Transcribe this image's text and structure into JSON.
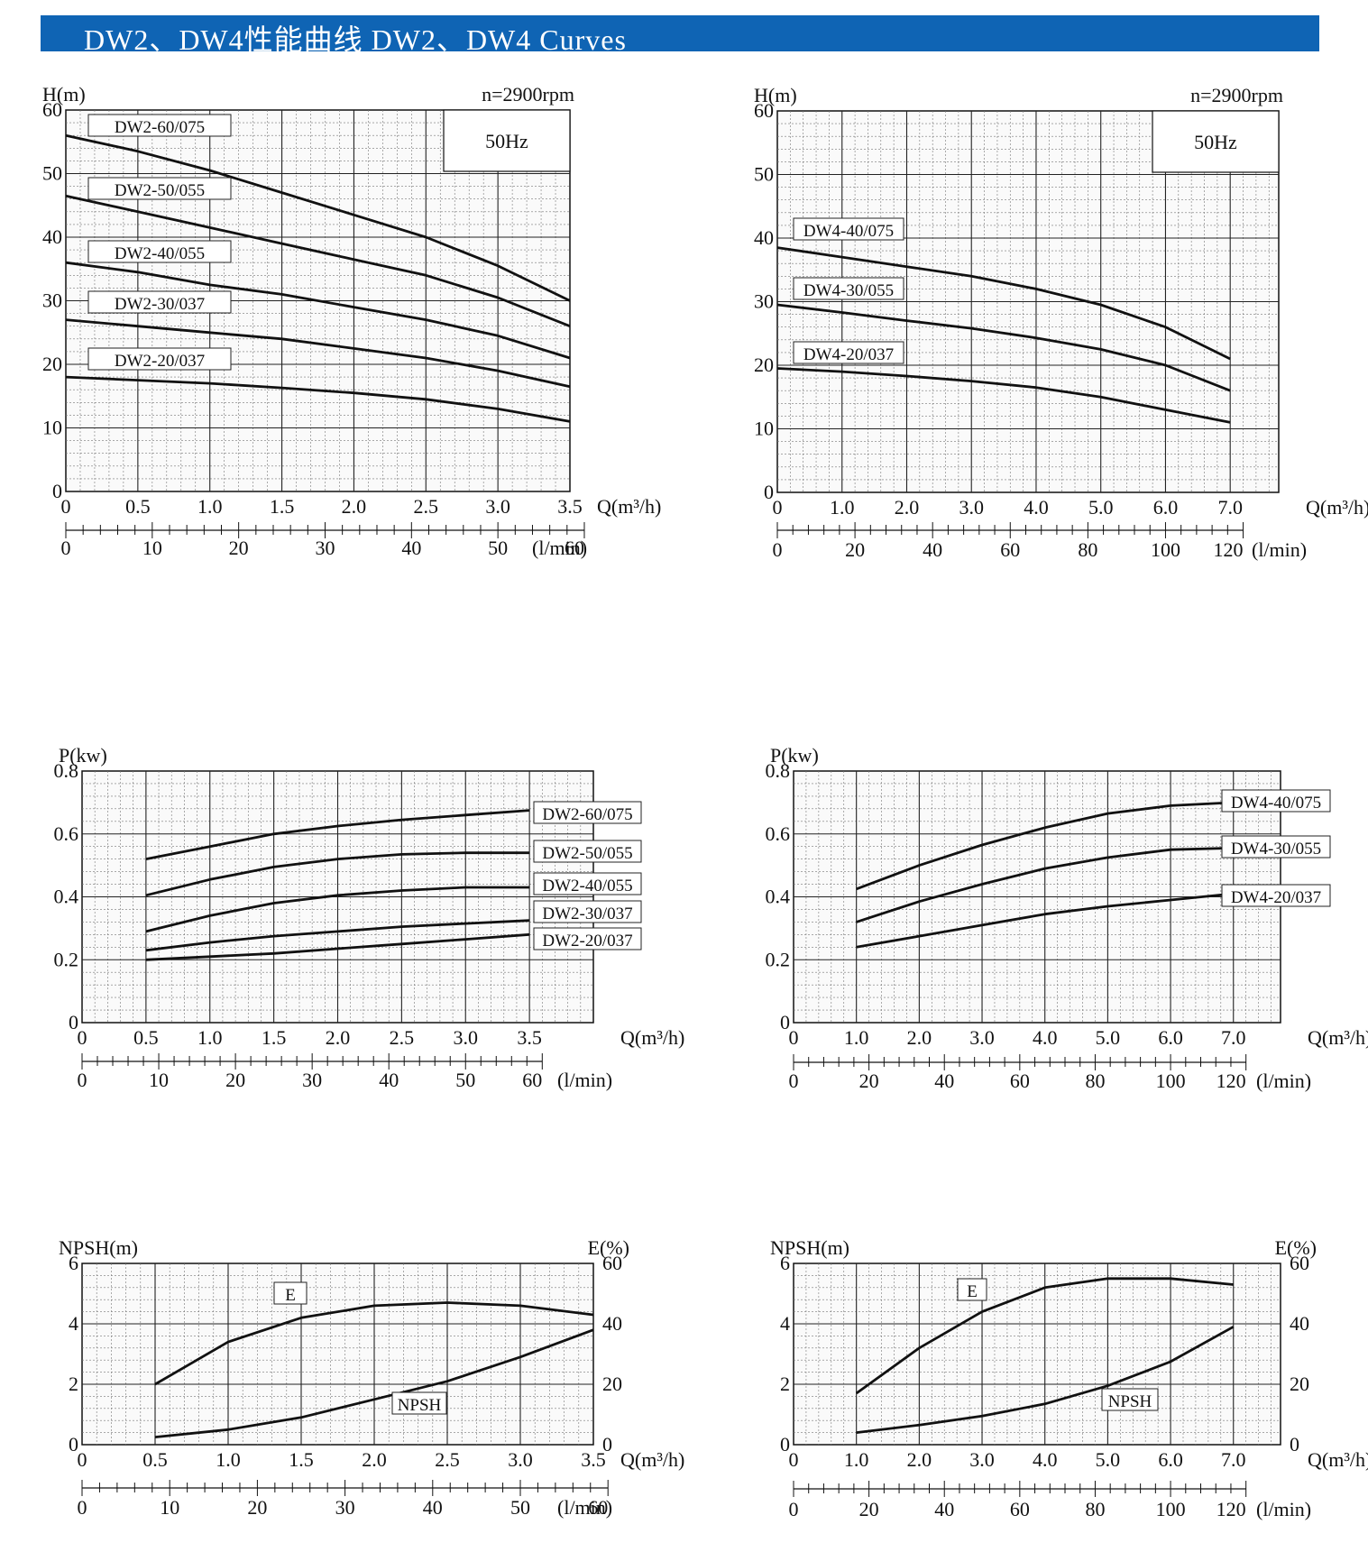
{
  "header": {
    "title": "DW2、DW4性能曲线  DW2、DW4 Curves"
  },
  "colors": {
    "banner": "#0f64b4",
    "line": "#111111",
    "grid_major": "#222222",
    "grid_minor": "#555555"
  },
  "chart_data": [
    {
      "id": "dw2-head",
      "type": "line",
      "title": "n=2900rpm",
      "frequency_label": "50Hz",
      "ylabel": "H(m)",
      "xlabel": "Q(m³/h)",
      "xlim": [
        0,
        3.5
      ],
      "ylim": [
        0,
        60
      ],
      "x_ticks": [
        "0",
        "0.5",
        "1.0",
        "1.5",
        "2.0",
        "2.5",
        "3.0",
        "3.5"
      ],
      "y_ticks": [
        "0",
        "10",
        "20",
        "30",
        "40",
        "50",
        "60"
      ],
      "flow_ticks": [
        "0",
        "10",
        "20",
        "30",
        "40",
        "50",
        "60"
      ],
      "flow_unit": "(l/min)",
      "series": [
        {
          "name": "DW2-60/075",
          "x": [
            0,
            0.5,
            1.0,
            1.5,
            2.0,
            2.5,
            3.0,
            3.5
          ],
          "values": [
            56,
            53.5,
            50.5,
            47,
            43.5,
            40,
            35.5,
            30
          ]
        },
        {
          "name": "DW2-50/055",
          "x": [
            0,
            0.5,
            1.0,
            1.5,
            2.0,
            2.5,
            3.0,
            3.5
          ],
          "values": [
            46.5,
            44,
            41.5,
            39,
            36.5,
            34,
            30.5,
            26
          ]
        },
        {
          "name": "DW2-40/055",
          "x": [
            0,
            0.5,
            1.0,
            1.5,
            2.0,
            2.5,
            3.0,
            3.5
          ],
          "values": [
            36,
            34.5,
            32.5,
            31,
            29,
            27,
            24.5,
            21
          ]
        },
        {
          "name": "DW2-30/037",
          "x": [
            0,
            0.5,
            1.0,
            1.5,
            2.0,
            2.5,
            3.0,
            3.5
          ],
          "values": [
            27,
            26,
            25,
            24,
            22.5,
            21,
            19,
            16.5
          ]
        },
        {
          "name": "DW2-20/037",
          "x": [
            0,
            0.5,
            1.0,
            1.5,
            2.0,
            2.5,
            3.0,
            3.5
          ],
          "values": [
            18,
            17.5,
            17,
            16.3,
            15.5,
            14.5,
            13,
            11
          ]
        }
      ]
    },
    {
      "id": "dw4-head",
      "type": "line",
      "title": "n=2900rpm",
      "frequency_label": "50Hz",
      "ylabel": "H(m)",
      "xlabel": "Q(m³/h)",
      "xlim": [
        0,
        7.75
      ],
      "ylim": [
        0,
        60
      ],
      "x_ticks": [
        "0",
        "1.0",
        "2.0",
        "3.0",
        "4.0",
        "5.0",
        "6.0",
        "7.0"
      ],
      "y_ticks": [
        "0",
        "10",
        "20",
        "30",
        "40",
        "50",
        "60"
      ],
      "flow_ticks": [
        "0",
        "20",
        "40",
        "60",
        "80",
        "100",
        "120"
      ],
      "flow_unit": "(l/min)",
      "series": [
        {
          "name": "DW4-40/075",
          "x": [
            0,
            1,
            2,
            3,
            4,
            5,
            6,
            7
          ],
          "values": [
            38.5,
            37,
            35.5,
            34,
            32,
            29.5,
            26,
            21
          ]
        },
        {
          "name": "DW4-30/055",
          "x": [
            0,
            1,
            2,
            3,
            4,
            5,
            6,
            7
          ],
          "values": [
            29.5,
            28.3,
            27,
            25.8,
            24.3,
            22.5,
            20,
            16
          ]
        },
        {
          "name": "DW4-20/037",
          "x": [
            0,
            1,
            2,
            3,
            4,
            5,
            6,
            7
          ],
          "values": [
            19.5,
            19,
            18.3,
            17.5,
            16.5,
            15,
            13,
            11
          ]
        }
      ]
    },
    {
      "id": "dw2-power",
      "type": "line",
      "ylabel": "P(kw)",
      "xlabel": "Q(m³/h)",
      "xlim": [
        0,
        4
      ],
      "ylim": [
        0,
        0.8
      ],
      "x_ticks": [
        "0",
        "0.5",
        "1.0",
        "1.5",
        "2.0",
        "2.5",
        "3.0",
        "3.5"
      ],
      "y_ticks": [
        "0",
        "0.2",
        "0.4",
        "0.6",
        "0.8"
      ],
      "flow_ticks": [
        "0",
        "10",
        "20",
        "30",
        "40",
        "50",
        "60"
      ],
      "flow_unit": "(l/min)",
      "series": [
        {
          "name": "DW2-60/075",
          "x": [
            0.5,
            1.0,
            1.5,
            2.0,
            2.5,
            3.0,
            3.5
          ],
          "values": [
            0.52,
            0.56,
            0.6,
            0.625,
            0.645,
            0.66,
            0.675
          ]
        },
        {
          "name": "DW2-50/055",
          "x": [
            0.5,
            1.0,
            1.5,
            2.0,
            2.5,
            3.0,
            3.5
          ],
          "values": [
            0.405,
            0.455,
            0.495,
            0.52,
            0.535,
            0.54,
            0.54
          ]
        },
        {
          "name": "DW2-40/055",
          "x": [
            0.5,
            1.0,
            1.5,
            2.0,
            2.5,
            3.0,
            3.5
          ],
          "values": [
            0.29,
            0.34,
            0.38,
            0.405,
            0.42,
            0.43,
            0.43
          ]
        },
        {
          "name": "DW2-30/037",
          "x": [
            0.5,
            1.0,
            1.5,
            2.0,
            2.5,
            3.0,
            3.5
          ],
          "values": [
            0.23,
            0.255,
            0.275,
            0.29,
            0.305,
            0.315,
            0.325
          ]
        },
        {
          "name": "DW2-20/037",
          "x": [
            0.5,
            1.0,
            1.5,
            2.0,
            2.5,
            3.0,
            3.5
          ],
          "values": [
            0.2,
            0.21,
            0.22,
            0.235,
            0.25,
            0.265,
            0.28
          ]
        }
      ]
    },
    {
      "id": "dw4-power",
      "type": "line",
      "ylabel": "P(kw)",
      "xlabel": "Q(m³/h)",
      "xlim": [
        0,
        7.75
      ],
      "ylim": [
        0,
        0.8
      ],
      "x_ticks": [
        "0",
        "1.0",
        "2.0",
        "3.0",
        "4.0",
        "5.0",
        "6.0",
        "7.0"
      ],
      "y_ticks": [
        "0",
        "0.2",
        "0.4",
        "0.6",
        "0.8"
      ],
      "flow_ticks": [
        "0",
        "20",
        "40",
        "60",
        "80",
        "100",
        "120"
      ],
      "flow_unit": "(l/min)",
      "series": [
        {
          "name": "DW4-40/075",
          "x": [
            1,
            2,
            3,
            4,
            5,
            6,
            7
          ],
          "values": [
            0.425,
            0.5,
            0.565,
            0.62,
            0.665,
            0.69,
            0.7
          ]
        },
        {
          "name": "DW4-30/055",
          "x": [
            1,
            2,
            3,
            4,
            5,
            6,
            7
          ],
          "values": [
            0.32,
            0.385,
            0.44,
            0.49,
            0.525,
            0.55,
            0.555
          ]
        },
        {
          "name": "DW4-20/037",
          "x": [
            1,
            2,
            3,
            4,
            5,
            6,
            7
          ],
          "values": [
            0.24,
            0.275,
            0.31,
            0.345,
            0.37,
            0.39,
            0.41
          ]
        }
      ]
    },
    {
      "id": "dw2-npsh",
      "type": "line",
      "ylabel": "NPSH(m)",
      "y2label": "E(%)",
      "xlabel": "Q(m³/h)",
      "xlim": [
        0,
        3.5
      ],
      "ylim": [
        0,
        6
      ],
      "y2lim": [
        0,
        60
      ],
      "x_ticks": [
        "0",
        "0.5",
        "1.0",
        "1.5",
        "2.0",
        "2.5",
        "3.0",
        "3.5"
      ],
      "y_ticks": [
        "0",
        "2",
        "4",
        "6"
      ],
      "y2_ticks": [
        "0",
        "20",
        "40",
        "60"
      ],
      "flow_ticks": [
        "0",
        "10",
        "20",
        "30",
        "40",
        "50",
        "60"
      ],
      "flow_unit": "(l/min)",
      "series": [
        {
          "name": "E",
          "axis": "right",
          "x": [
            0.5,
            1.0,
            1.5,
            2.0,
            2.5,
            3.0,
            3.5
          ],
          "values": [
            20,
            34,
            42,
            46,
            47,
            46,
            43
          ]
        },
        {
          "name": "NPSH",
          "axis": "left",
          "x": [
            0.5,
            1.0,
            1.5,
            2.0,
            2.5,
            3.0,
            3.5
          ],
          "values": [
            0.25,
            0.5,
            0.9,
            1.5,
            2.1,
            2.9,
            3.8
          ]
        }
      ]
    },
    {
      "id": "dw4-npsh",
      "type": "line",
      "ylabel": "NPSH(m)",
      "y2label": "E(%)",
      "xlabel": "Q(m³/h)",
      "xlim": [
        0,
        7.75
      ],
      "ylim": [
        0,
        6
      ],
      "y2lim": [
        0,
        60
      ],
      "x_ticks": [
        "0",
        "1.0",
        "2.0",
        "3.0",
        "4.0",
        "5.0",
        "6.0",
        "7.0"
      ],
      "y_ticks": [
        "0",
        "2",
        "4",
        "6"
      ],
      "y2_ticks": [
        "0",
        "20",
        "40",
        "60"
      ],
      "flow_ticks": [
        "0",
        "20",
        "40",
        "60",
        "80",
        "100",
        "120"
      ],
      "flow_unit": "(l/min)",
      "series": [
        {
          "name": "E",
          "axis": "right",
          "x": [
            1,
            2,
            3,
            4,
            5,
            6,
            7
          ],
          "values": [
            17,
            32,
            44,
            52,
            55,
            55,
            53
          ]
        },
        {
          "name": "NPSH",
          "axis": "left",
          "x": [
            1,
            2,
            3,
            4,
            5,
            6,
            7
          ],
          "values": [
            0.4,
            0.65,
            0.95,
            1.35,
            1.95,
            2.75,
            3.9
          ]
        }
      ]
    }
  ]
}
